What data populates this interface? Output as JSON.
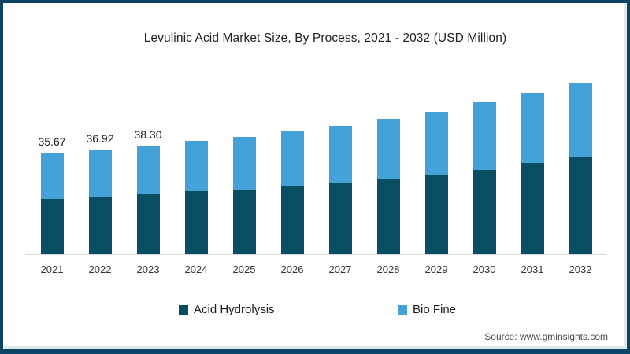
{
  "frame": {
    "border_color": "#0c4466",
    "inset_color": "#e3e8ea",
    "card_color": "#ffffff"
  },
  "source": {
    "text": "Source: www.gminsights.com"
  },
  "chart_data": {
    "type": "bar",
    "stacked": true,
    "title": "Levulinic Acid Market Size, By Process, 2021 - 2032 (USD Million)",
    "unit": "USD Million",
    "categories": [
      "2021",
      "2022",
      "2023",
      "2024",
      "2025",
      "2026",
      "2027",
      "2028",
      "2029",
      "2030",
      "2031",
      "2032"
    ],
    "series": [
      {
        "name": "Acid Hydrolysis",
        "color": "#084d61",
        "values": [
          19.5,
          20.3,
          21.2,
          22.2,
          22.9,
          24.1,
          25.4,
          26.6,
          28.3,
          29.9,
          32.2,
          34.5
        ]
      },
      {
        "name": "Bio Fine",
        "color": "#45a2d9",
        "values": [
          16.2,
          16.6,
          17.1,
          17.9,
          18.8,
          19.5,
          20.1,
          21.3,
          22.3,
          23.9,
          24.9,
          26.4
        ]
      }
    ],
    "totals": [
      35.67,
      36.92,
      38.3,
      40.1,
      41.7,
      43.6,
      45.5,
      47.9,
      50.6,
      53.8,
      57.1,
      60.9
    ],
    "bar_labels": [
      "35.67",
      "36.92",
      "38.30",
      "",
      "",
      "",
      "",
      "",
      "",
      "",
      "",
      ""
    ],
    "ylim": [
      0,
      65
    ],
    "grid": false,
    "legend_position": "bottom",
    "axis_color": "#d9d9d9"
  }
}
